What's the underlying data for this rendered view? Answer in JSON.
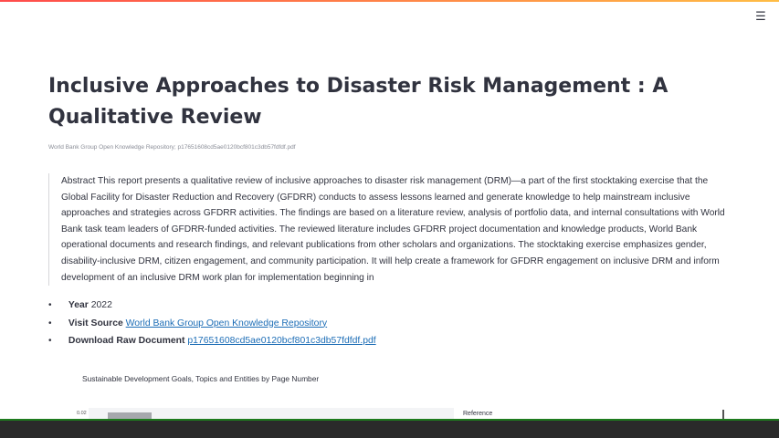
{
  "header": {
    "menu_icon": "hamburger-menu-icon",
    "accent_colors": [
      "#ff4b4b",
      "#ffbd45"
    ]
  },
  "document": {
    "title": "Inclusive Approaches to Disaster Risk Management : A Qualitative Review",
    "source_line": "World Bank Group Open Knowledge Repository; p17651608cd5ae0120bcf801c3db57fdfdf.pdf",
    "abstract": "Abstract This report presents a qualitative review of inclusive approaches to disaster risk management (DRM)—a part of the first stocktaking exercise that the Global Facility for Disaster Reduction and Recovery (GFDRR) conducts to assess lessons learned and generate knowledge to help mainstream inclusive approaches and strategies across GFDRR activities. The findings are based on a literature review, analysis of portfolio data, and internal consultations with World Bank task team leaders of GFDRR-funded activities. The reviewed literature includes GFDRR project documentation and knowledge products, World Bank operational documents and research findings, and relevant publications from other scholars and organizations. The stocktaking exercise emphasizes gender, disability-inclusive DRM, citizen engagement, and community participation. It will help create a framework for GFDRR engagement on inclusive DRM and inform development of an inclusive DRM work plan for implementation beginning in"
  },
  "meta": {
    "year_label": "Year",
    "year_value": "2022",
    "source_label": "Visit Source",
    "source_link": "World Bank Group Open Knowledge Repository",
    "download_label": "Download Raw Document",
    "download_link": "p17651608cd5ae0120bcf801c3db57fdfdf.pdf"
  },
  "chart": {
    "title": "Sustainable Development Goals, Topics and Entities by Page Number",
    "tick_label": "0.02",
    "legend_label": "Reference"
  }
}
